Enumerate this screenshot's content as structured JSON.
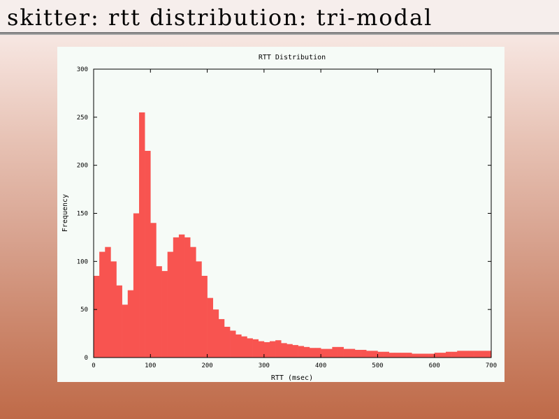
{
  "slide": {
    "title": "skitter: rtt distribution: tri-modal"
  },
  "colors": {
    "bar": "#f85450",
    "plot_bg": "#f6fbf7",
    "axis": "#000000"
  },
  "chart_data": {
    "type": "bar",
    "title": "RTT Distribution",
    "xlabel": "RTT (msec)",
    "ylabel": "Frequency",
    "xlim": [
      0,
      700
    ],
    "ylim": [
      0,
      300
    ],
    "xticks": [
      0,
      100,
      200,
      300,
      400,
      500,
      600,
      700
    ],
    "yticks": [
      0,
      50,
      100,
      150,
      200,
      250,
      300
    ],
    "grid": false,
    "legend": "none",
    "bin_width_ms": 10,
    "x": [
      5,
      15,
      25,
      35,
      45,
      55,
      65,
      75,
      85,
      95,
      105,
      115,
      125,
      135,
      145,
      155,
      165,
      175,
      185,
      195,
      205,
      215,
      225,
      235,
      245,
      255,
      265,
      275,
      285,
      295,
      305,
      315,
      325,
      335,
      345,
      355,
      365,
      375,
      385,
      395,
      405,
      415,
      425,
      435,
      445,
      455,
      465,
      475,
      485,
      495,
      505,
      515,
      525,
      535,
      545,
      555,
      565,
      575,
      585,
      595,
      605,
      615,
      625,
      635,
      645,
      655,
      665,
      675,
      685,
      695
    ],
    "values": [
      85,
      110,
      115,
      100,
      75,
      55,
      70,
      150,
      255,
      215,
      140,
      95,
      90,
      110,
      125,
      128,
      125,
      115,
      100,
      85,
      62,
      50,
      40,
      32,
      28,
      24,
      22,
      20,
      19,
      17,
      16,
      17,
      18,
      15,
      14,
      13,
      12,
      11,
      10,
      10,
      9,
      9,
      11,
      11,
      9,
      9,
      8,
      8,
      7,
      7,
      6,
      6,
      5,
      5,
      5,
      5,
      4,
      4,
      4,
      4,
      5,
      5,
      6,
      6,
      7,
      7,
      7,
      7,
      7,
      7
    ]
  }
}
